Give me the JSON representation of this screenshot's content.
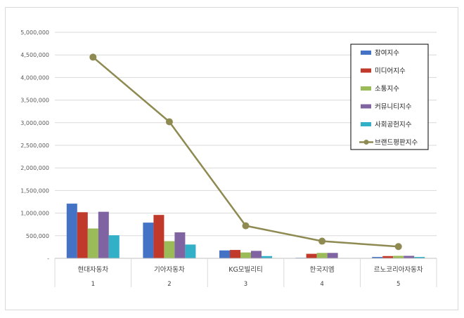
{
  "chart_data": {
    "type": "bar",
    "title": "",
    "xlabel": "",
    "ylabel": "",
    "ylim": [
      0,
      5000000
    ],
    "yticks": [
      0,
      500000,
      1000000,
      1500000,
      2000000,
      2500000,
      3000000,
      3500000,
      4000000,
      4500000,
      5000000
    ],
    "ytick_labels": [
      "-",
      "500,000",
      "1,000,000",
      "1,500,000",
      "2,000,000",
      "2,500,000",
      "3,000,000",
      "3,500,000",
      "4,000,000",
      "4,500,000",
      "5,000,000"
    ],
    "categories": [
      "현대자동차",
      "기아자동차",
      "KG모빌리티",
      "한국지엠",
      "르노코리아자동차"
    ],
    "category_index": [
      "1",
      "2",
      "3",
      "4",
      "5"
    ],
    "grid": true,
    "legend_position": "top-right",
    "series": [
      {
        "name": "참여지수",
        "type": "bar",
        "color": "#4472C4",
        "values": [
          1210000,
          790000,
          175000,
          12000,
          30000
        ]
      },
      {
        "name": "미디어지수",
        "type": "bar",
        "color": "#C0392B",
        "values": [
          1020000,
          960000,
          185000,
          100000,
          50000
        ]
      },
      {
        "name": "소통지수",
        "type": "bar",
        "color": "#9BBB59",
        "values": [
          660000,
          380000,
          130000,
          120000,
          55000
        ]
      },
      {
        "name": "커뮤니티지수",
        "type": "bar",
        "color": "#8064A2",
        "values": [
          1030000,
          575000,
          165000,
          120000,
          55000
        ]
      },
      {
        "name": "사회공헌지수",
        "type": "bar",
        "color": "#31B0C8",
        "values": [
          510000,
          305000,
          50000,
          8000,
          30000
        ]
      },
      {
        "name": "브랜드평판지수",
        "type": "line",
        "color": "#8E8A52",
        "values": [
          4450000,
          3020000,
          720000,
          380000,
          260000
        ]
      }
    ]
  }
}
